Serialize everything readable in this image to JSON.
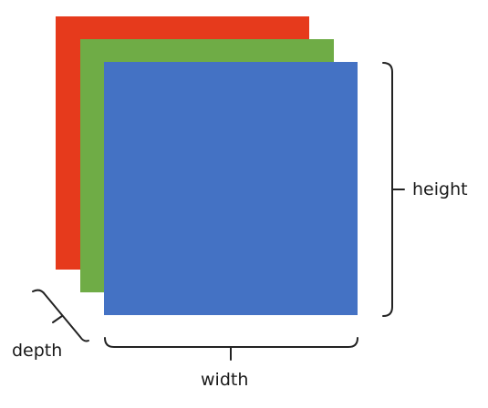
{
  "layers": [
    {
      "name": "red",
      "color": "#E63A1C"
    },
    {
      "name": "green",
      "color": "#6FAC46"
    },
    {
      "name": "blue",
      "color": "#4472C4"
    }
  ],
  "labels": {
    "height": "height",
    "width": "width",
    "depth": "depth"
  }
}
